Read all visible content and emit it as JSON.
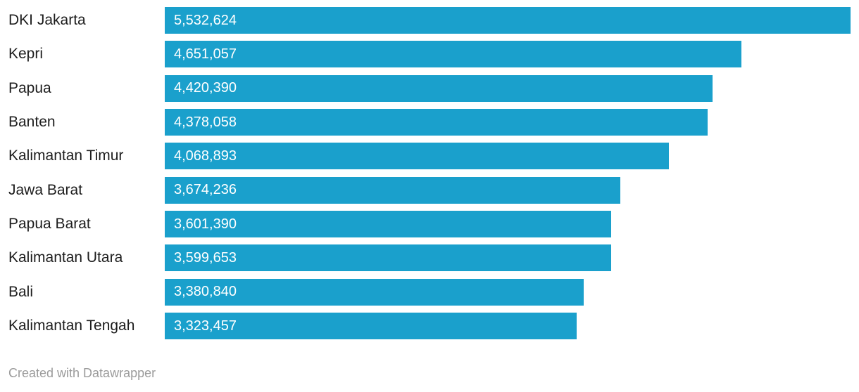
{
  "chart_data": {
    "type": "bar",
    "orientation": "horizontal",
    "title": "",
    "xlabel": "",
    "ylabel": "",
    "grid": false,
    "legend": false,
    "axis_hidden": true,
    "xlim": [
      0,
      5532624
    ],
    "categories": [
      "DKI Jakarta",
      "Kepri",
      "Papua",
      "Banten",
      "Kalimantan Timur",
      "Jawa Barat",
      "Papua Barat",
      "Kalimantan Utara",
      "Bali",
      "Kalimantan Tengah"
    ],
    "values": [
      5532624,
      4651057,
      4420390,
      4378058,
      4068893,
      3674236,
      3601390,
      3599653,
      3380840,
      3323457
    ],
    "value_labels": [
      "5,532,624",
      "4,651,057",
      "4,420,390",
      "4,378,058",
      "4,068,893",
      "3,674,236",
      "3,601,390",
      "3,599,653",
      "3,380,840",
      "3,323,457"
    ],
    "colors": {
      "bar": "#1aa0cc",
      "category_label": "#1d1d1d",
      "value_label": "#ffffff"
    }
  },
  "footer": {
    "credit": "Created with Datawrapper",
    "color": "#9b9b9b"
  }
}
